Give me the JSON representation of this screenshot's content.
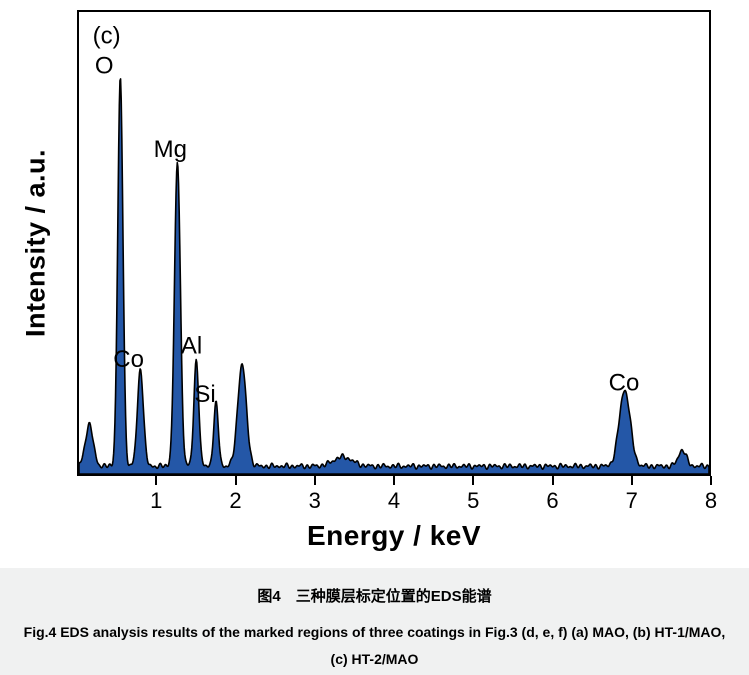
{
  "chart_data": {
    "type": "area",
    "title": "(c)",
    "xlabel": "Energy / keV",
    "ylabel": "Intensity / a.u.",
    "xlim": [
      0,
      8
    ],
    "ylim": [
      0,
      100
    ],
    "x_ticks": [
      1,
      2,
      3,
      4,
      5,
      6,
      7,
      8
    ],
    "grid": false,
    "legend": "none",
    "fill_color": "#2457a7",
    "stroke_color": "#000000",
    "baseline": 1.7,
    "peaks": [
      {
        "element": "",
        "center": 0.13,
        "height": 9,
        "sigma": 0.05
      },
      {
        "element": "O",
        "center": 0.525,
        "height": 84,
        "sigma": 0.033
      },
      {
        "element": "Co",
        "center": 0.78,
        "height": 21,
        "sigma": 0.038
      },
      {
        "element": "Mg",
        "center": 1.25,
        "height": 66,
        "sigma": 0.037
      },
      {
        "element": "Al",
        "center": 1.49,
        "height": 23,
        "sigma": 0.031
      },
      {
        "element": "Si",
        "center": 1.74,
        "height": 13.5,
        "sigma": 0.03
      },
      {
        "element": "",
        "center": 2.07,
        "height": 22,
        "sigma": 0.055
      },
      {
        "element": "",
        "center": 3.35,
        "height": 2.0,
        "sigma": 0.12
      },
      {
        "element": "Co",
        "center": 6.93,
        "height": 16.5,
        "sigma": 0.07
      },
      {
        "element": "",
        "center": 7.66,
        "height": 3.5,
        "sigma": 0.05
      }
    ],
    "annotations": [
      {
        "text": "(c)",
        "x": 0.35,
        "y": 94.5
      },
      {
        "text": "O",
        "x": 0.32,
        "y": 88
      },
      {
        "text": "Co",
        "x": 0.63,
        "y": 24.5
      },
      {
        "text": "Mg",
        "x": 1.16,
        "y": 70
      },
      {
        "text": "Al",
        "x": 1.43,
        "y": 27.4
      },
      {
        "text": "Si",
        "x": 1.6,
        "y": 17
      },
      {
        "text": "Co",
        "x": 6.92,
        "y": 19.4
      }
    ]
  },
  "caption": {
    "zh": "图4　三种膜层标定位置的EDS能谱",
    "en": "Fig.4  EDS analysis results of the marked regions of three coatings in Fig.3 (d, e, f) (a) MAO, (b) HT-1/MAO, (c) HT-2/MAO"
  }
}
